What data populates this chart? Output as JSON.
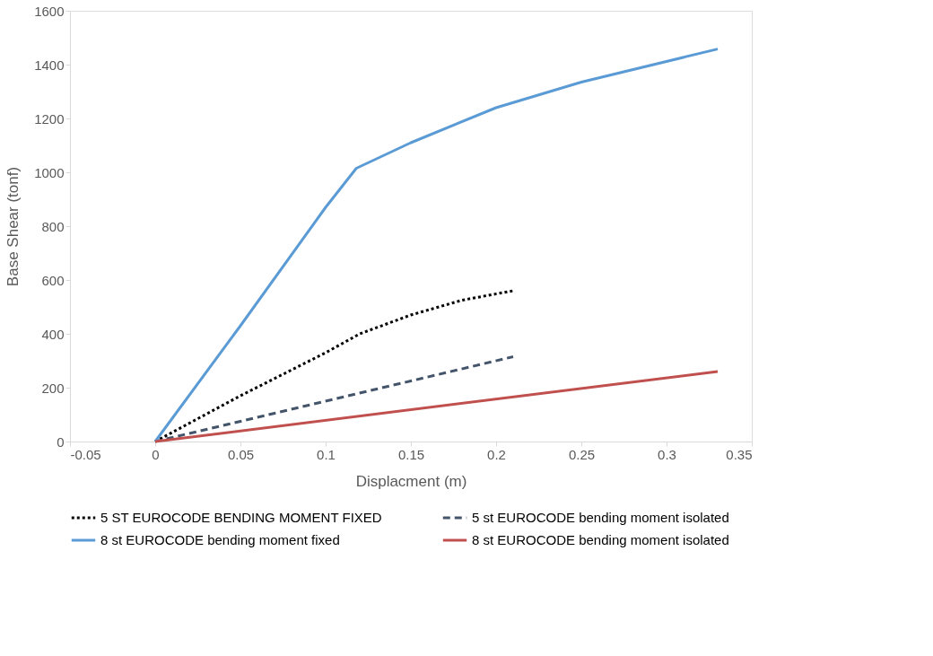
{
  "chart_data": {
    "type": "line",
    "xlabel": "Displacment (m)",
    "ylabel": "Base Shear (tonf)",
    "xlim": [
      -0.05,
      0.35
    ],
    "xticks": [
      -0.05,
      0,
      0.05,
      0.1,
      0.15,
      0.2,
      0.25,
      0.3,
      0.35
    ],
    "ylim": [
      0,
      1600
    ],
    "yticks": [
      0,
      200,
      400,
      600,
      800,
      1000,
      1200,
      1400,
      1600
    ],
    "grid": false,
    "legend": "bottom",
    "marker": "none",
    "series": [
      {
        "name": "5 ST EUROCODE BENDING MOMENT FIXED",
        "color": "#000000",
        "line_style": "dotted",
        "x": [
          0,
          0.05,
          0.1,
          0.12,
          0.15,
          0.18,
          0.21
        ],
        "values": [
          0,
          170,
          330,
          400,
          470,
          525,
          560
        ]
      },
      {
        "name": "5 st EUROCODE bending moment isolated",
        "color": "#44546a",
        "line_style": "dashed",
        "x": [
          0,
          0.21
        ],
        "values": [
          0,
          315
        ]
      },
      {
        "name": "8 st EUROCODE bending moment fixed",
        "color": "#5b9bd5",
        "line_style": "solid",
        "x": [
          0,
          0.05,
          0.1,
          0.118,
          0.15,
          0.2,
          0.25,
          0.33
        ],
        "values": [
          0,
          430,
          870,
          1015,
          1110,
          1240,
          1335,
          1458
        ]
      },
      {
        "name": "8 st EUROCODE bending moment isolated",
        "color": "#c0504d",
        "line_style": "solid",
        "x": [
          0,
          0.33
        ],
        "values": [
          0,
          260
        ]
      }
    ]
  }
}
